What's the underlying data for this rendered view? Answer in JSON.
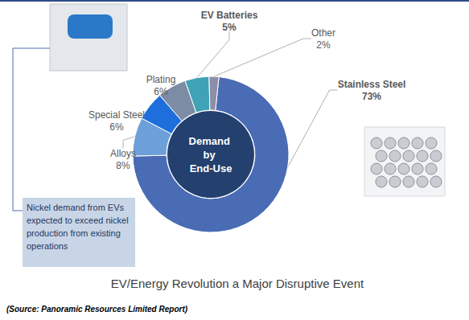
{
  "chart_data": {
    "type": "donut",
    "title": "EV/Energy Revolution a Major Disruptive Event",
    "categories": [
      "Stainless Steel",
      "Alloys",
      "Special Steel",
      "Plating",
      "EV Batteries",
      "Other"
    ],
    "values": [
      73,
      8,
      6,
      6,
      5,
      2
    ],
    "value_labels": [
      "73%",
      "8%",
      "6%",
      "6%",
      "5%",
      "2%"
    ],
    "colors": [
      "#4a6cb5",
      "#6d9fd9",
      "#1e6fdc",
      "#7c8ca5",
      "#3fa2b6",
      "#8e8ea8"
    ],
    "data_labels": true,
    "annotations": {
      "center": "Demand by End-Use",
      "callout": "Nickel demand from EVs expected to exceed nickel production from existing operations",
      "source": "(Source: Panoramic Resources Limited Report)"
    }
  }
}
